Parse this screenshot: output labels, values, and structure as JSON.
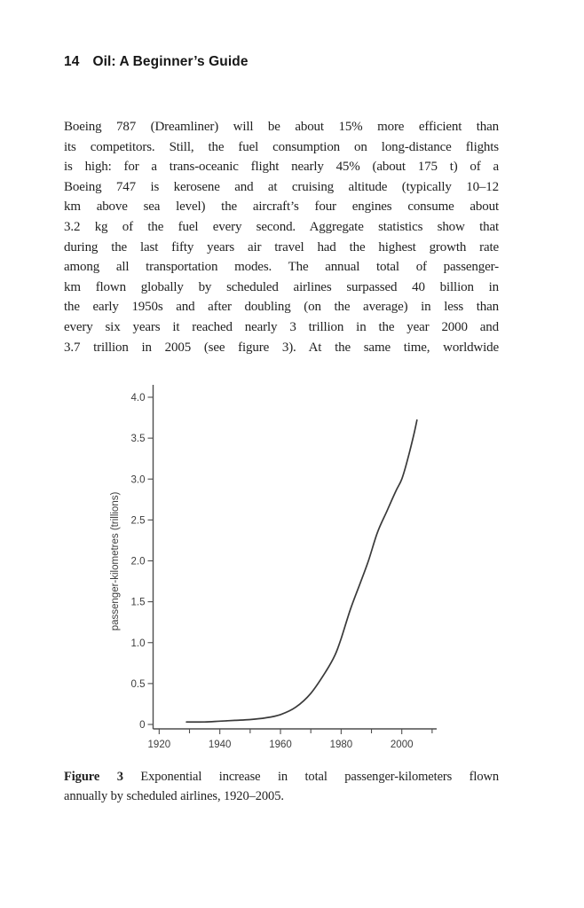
{
  "header": {
    "page_number": "14",
    "running_title": "Oil: A Beginner’s Guide"
  },
  "paragraph": {
    "lines": [
      "Boeing 787 (Dreamliner) will be about 15% more efficient than",
      "its competitors. Still, the fuel consumption on long-distance flights",
      "is high: for a trans-oceanic flight nearly 45% (about 175 t) of a",
      "Boeing 747 is kerosene and at cruising altitude (typically 10–12",
      "km above sea level) the aircraft’s four engines consume about",
      "3.2 kg of the fuel every second. Aggregate statistics show that",
      "during the last fifty years air travel had the highest growth rate",
      "among all transportation modes. The annual total of passenger-",
      "km flown globally by scheduled airlines surpassed 40 billion in",
      "the early 1950s and after doubling (on the average) in less than",
      "every six years it reached nearly 3 trillion in the year 2000 and",
      "3.7 trillion in 2005 (see figure 3). At the same time, worldwide"
    ]
  },
  "figure": {
    "caption_label": "Figure 3",
    "caption_rest_line1": "Exponential increase in total passenger-kilometers flown",
    "caption_line2": "annually by scheduled airlines, 1920–2005."
  },
  "chart_data": {
    "type": "line",
    "figure_label": "Figure 3",
    "title": "",
    "xlabel": "",
    "ylabel": "passenger-kilometres (trillions)",
    "x": [
      1929,
      1935,
      1940,
      1945,
      1950,
      1955,
      1960,
      1965,
      1970,
      1975,
      1978,
      1980,
      1983,
      1986,
      1989,
      1992,
      1995,
      1998,
      2000,
      2002,
      2004,
      2005
    ],
    "series": [
      {
        "name": "passenger-kilometres flown annually by scheduled airlines",
        "values": [
          0.03,
          0.03,
          0.04,
          0.05,
          0.06,
          0.08,
          0.12,
          0.21,
          0.38,
          0.65,
          0.85,
          1.05,
          1.4,
          1.7,
          2.0,
          2.35,
          2.6,
          2.85,
          3.0,
          3.25,
          3.55,
          3.72
        ]
      }
    ],
    "xlim": [
      1918,
      2011.5
    ],
    "ylim": [
      0,
      4.0
    ],
    "y_ticks": [
      {
        "value": 4.0,
        "label": "4.0"
      },
      {
        "value": 3.5,
        "label": "3.5"
      },
      {
        "value": 3.0,
        "label": "3.0"
      },
      {
        "value": 2.5,
        "label": "2.5"
      },
      {
        "value": 2.0,
        "label": "2.0"
      },
      {
        "value": 1.5,
        "label": "1.5"
      },
      {
        "value": 1.0,
        "label": "1.0"
      },
      {
        "value": 0.5,
        "label": "0.5"
      },
      {
        "value": 0,
        "label": "0"
      }
    ],
    "x_major_ticks": [
      {
        "value": 1920,
        "label": "1920"
      },
      {
        "value": 1940,
        "label": "1940"
      },
      {
        "value": 1960,
        "label": "1960"
      },
      {
        "value": 1980,
        "label": "1980"
      },
      {
        "value": 2000,
        "label": "2000"
      }
    ],
    "x_minor_ticks": [
      1930,
      1950,
      1970,
      1990,
      2010
    ],
    "grid": false,
    "legend": "none",
    "colors": {
      "line": "#3a3a3a",
      "axis": "#4d4d4d",
      "tick_label": "#3d3d3d"
    }
  }
}
